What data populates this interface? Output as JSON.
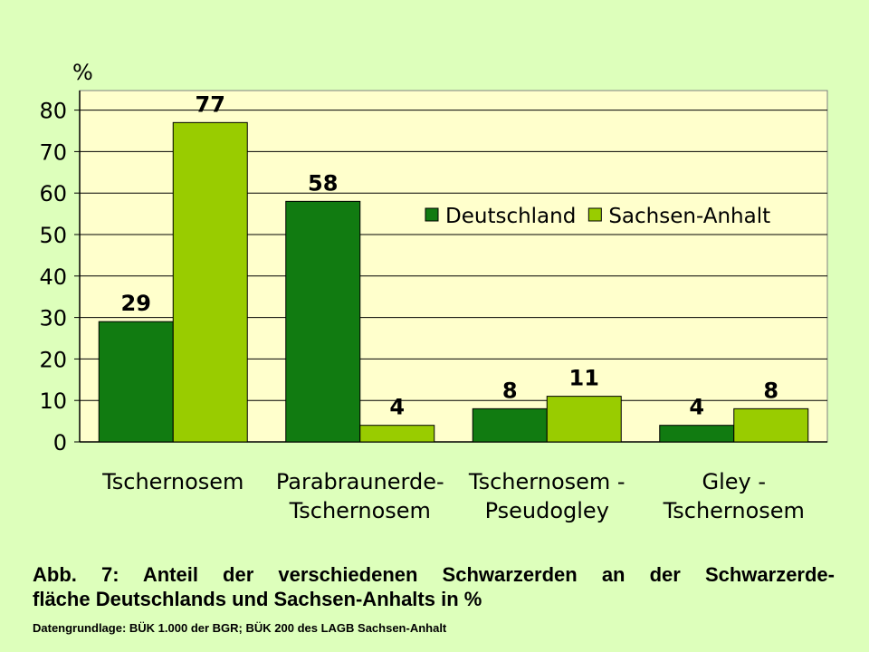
{
  "chart_data": {
    "type": "bar",
    "ylabel": "%",
    "ylim": [
      0,
      85
    ],
    "yticks": [
      0,
      10,
      20,
      30,
      40,
      50,
      60,
      70,
      80
    ],
    "grid": true,
    "legend_position": "center-right",
    "categories": [
      [
        "Tschernosem"
      ],
      [
        "Parabraunerde-",
        "Tschernosem"
      ],
      [
        "Tschernosem -",
        "Pseudogley"
      ],
      [
        "Gley -",
        "Tschernosem"
      ]
    ],
    "series": [
      {
        "name": "Deutschland",
        "color": "#117b11",
        "values": [
          29,
          58,
          8,
          4
        ]
      },
      {
        "name": "Sachsen-Anhalt",
        "color": "#99cc00",
        "values": [
          77,
          4,
          11,
          8
        ]
      }
    ]
  },
  "caption": {
    "line1": "Abb. 7: Anteil der verschiedenen Schwarzerden an der Schwarzerde-",
    "line2": "fläche Deutschlands und Sachsen-Anhalts in %",
    "source": "Datengrundlage: BÜK 1.000 der BGR; BÜK 200 des LAGB Sachsen-Anhalt"
  },
  "colors": {
    "background": "#ddffbb",
    "plot_area": "#ffffcc"
  }
}
